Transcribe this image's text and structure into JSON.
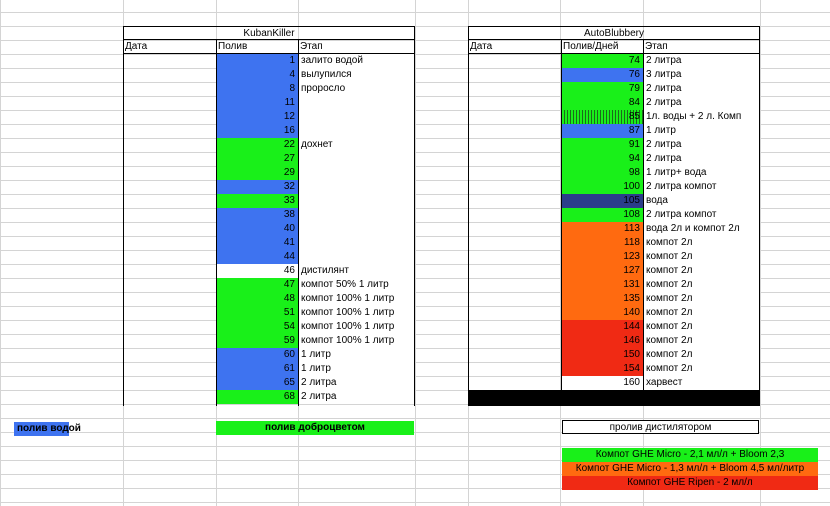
{
  "colors": {
    "blue": "#3e73f0",
    "green": "#19f019",
    "orange": "#ff6a10",
    "red": "#f02a14",
    "navy": "#2b3d8a",
    "black": "#000000"
  },
  "left_table": {
    "title": "KubanKiller",
    "headers": [
      "Дата",
      "Полив",
      "Этап"
    ],
    "rows": [
      {
        "day": "1",
        "stage": "залито водой",
        "color": "blue"
      },
      {
        "day": "4",
        "stage": "вылупился",
        "color": "blue"
      },
      {
        "day": "8",
        "stage": "проросло",
        "color": "blue"
      },
      {
        "day": "11",
        "stage": "",
        "color": "blue"
      },
      {
        "day": "12",
        "stage": "",
        "color": "blue"
      },
      {
        "day": "16",
        "stage": "",
        "color": "blue"
      },
      {
        "day": "22",
        "stage": "дохнет",
        "color": "green"
      },
      {
        "day": "27",
        "stage": "",
        "color": "green"
      },
      {
        "day": "29",
        "stage": "",
        "color": "green"
      },
      {
        "day": "32",
        "stage": "",
        "color": "blue"
      },
      {
        "day": "33",
        "stage": "",
        "color": "green"
      },
      {
        "day": "38",
        "stage": "",
        "color": "blue"
      },
      {
        "day": "40",
        "stage": "",
        "color": "blue"
      },
      {
        "day": "41",
        "stage": "",
        "color": "blue"
      },
      {
        "day": "44",
        "stage": "",
        "color": "blue"
      },
      {
        "day": "46",
        "stage": "дистилянт",
        "color": "white"
      },
      {
        "day": "47",
        "stage": "компот 50% 1 литр",
        "color": "green"
      },
      {
        "day": "48",
        "stage": "компот 100% 1 литр",
        "color": "green"
      },
      {
        "day": "51",
        "stage": "компот 100% 1 литр",
        "color": "green"
      },
      {
        "day": "54",
        "stage": "компот 100% 1 литр",
        "color": "green"
      },
      {
        "day": "59",
        "stage": "компот 100% 1 литр",
        "color": "green"
      },
      {
        "day": "60",
        "stage": "1 литр",
        "color": "blue"
      },
      {
        "day": "61",
        "stage": "1 литр",
        "color": "blue"
      },
      {
        "day": "65",
        "stage": "2 литра",
        "color": "blue"
      },
      {
        "day": "68",
        "stage": "2 литра",
        "color": "green"
      }
    ]
  },
  "right_table": {
    "title": "AutoBlubbery",
    "headers": [
      "Дата",
      "Полив/Дней",
      "Этап"
    ],
    "rows": [
      {
        "day": "74",
        "stage": "2 литра",
        "color": "green"
      },
      {
        "day": "76",
        "stage": "3 литра",
        "color": "blue"
      },
      {
        "day": "79",
        "stage": "2 литра",
        "color": "green"
      },
      {
        "day": "84",
        "stage": "2 литра",
        "color": "green"
      },
      {
        "day": "85",
        "stage": "1л. воды + 2 л. Комп",
        "color": "hatched"
      },
      {
        "day": "87",
        "stage": "1 литр",
        "color": "blue"
      },
      {
        "day": "91",
        "stage": "2 литра",
        "color": "green"
      },
      {
        "day": "94",
        "stage": "2 литра",
        "color": "green"
      },
      {
        "day": "98",
        "stage": "1 литр+ вода",
        "color": "green"
      },
      {
        "day": "100",
        "stage": "2 литра компот",
        "color": "green"
      },
      {
        "day": "105",
        "stage": "вода",
        "color": "navy"
      },
      {
        "day": "108",
        "stage": "2 литра компот",
        "color": "green"
      },
      {
        "day": "113",
        "stage": "вода 2л и компот 2л",
        "color": "orange"
      },
      {
        "day": "118",
        "stage": "компот 2л",
        "color": "orange"
      },
      {
        "day": "123",
        "stage": "компот 2л",
        "color": "orange"
      },
      {
        "day": "127",
        "stage": "компот 2л",
        "color": "orange"
      },
      {
        "day": "131",
        "stage": "компот 2л",
        "color": "orange"
      },
      {
        "day": "135",
        "stage": "компот 2л",
        "color": "orange"
      },
      {
        "day": "140",
        "stage": "компот 2л",
        "color": "orange"
      },
      {
        "day": "144",
        "stage": "компот 2л",
        "color": "red"
      },
      {
        "day": "146",
        "stage": "компот 2л",
        "color": "red"
      },
      {
        "day": "150",
        "stage": "компот 2л",
        "color": "red"
      },
      {
        "day": "154",
        "stage": "компот 2л",
        "color": "red"
      },
      {
        "day": "160",
        "stage": "харвест",
        "color": "white"
      }
    ]
  },
  "legend": {
    "water": "полив водой",
    "dobrotsvet": "полив доброцветом",
    "distillator": "пролив дистилятором",
    "ghe_green": "Компот GHE Micro - 2,1 мл/л + Bloom 2,3",
    "ghe_orange": "Компот GHE Micro - 1,3 мл/л + Bloom 4,5 мл/литр",
    "ghe_red": "Компот GHE Ripen - 2 мл/л"
  }
}
